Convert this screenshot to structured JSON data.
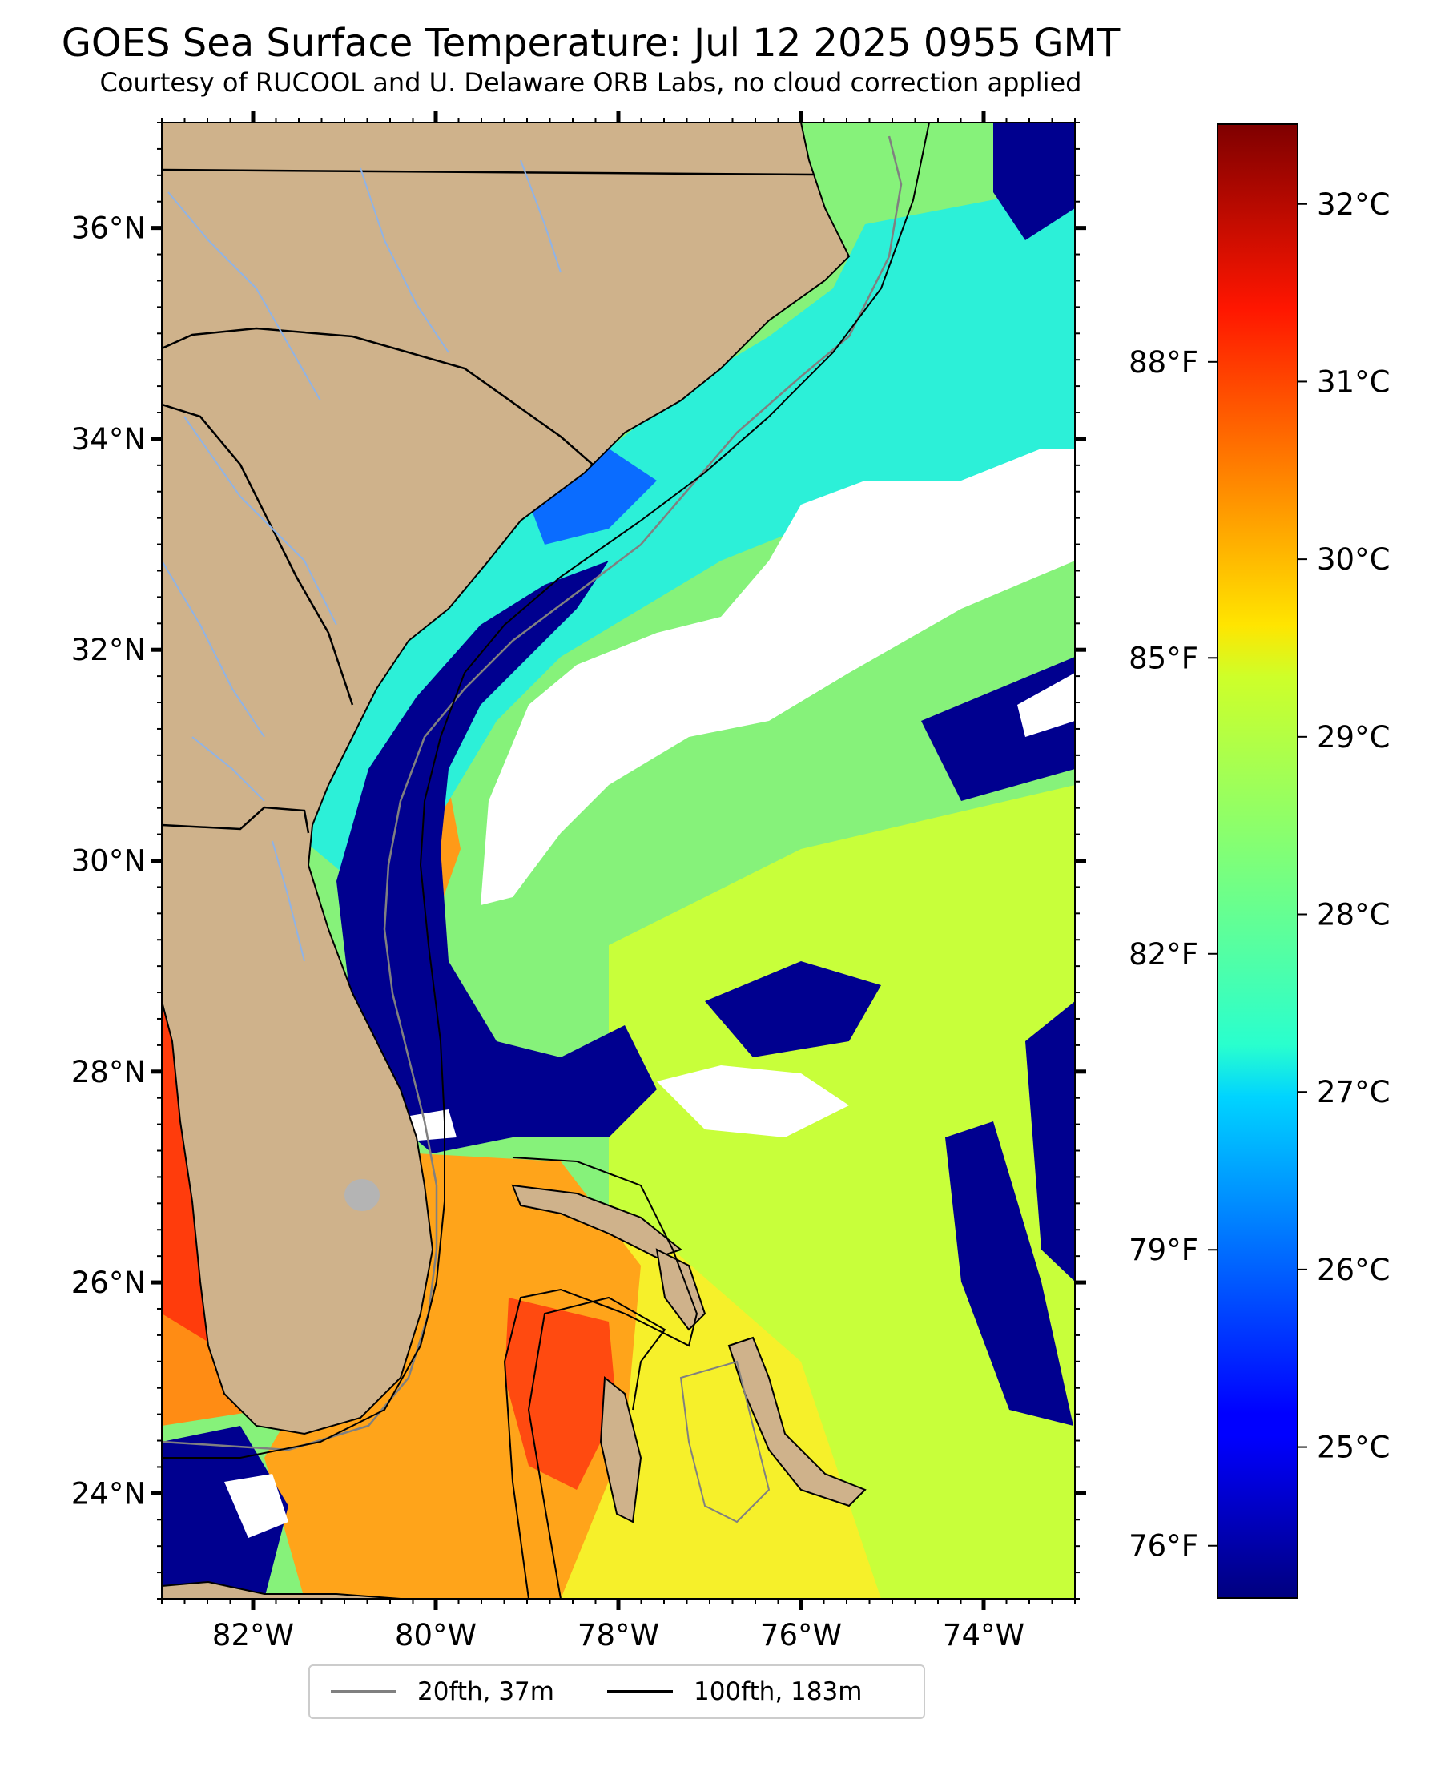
{
  "title": "GOES Sea Surface Temperature: Jul 12 2025 0955 GMT",
  "subtitle": "Courtesy of RUCOOL and U. Delaware ORB Labs, no cloud correction applied",
  "map": {
    "lon_range": [
      -83,
      -73
    ],
    "lat_range": [
      23,
      37
    ],
    "lon_ticks": [
      {
        "value": -82,
        "label": "82°W"
      },
      {
        "value": -80,
        "label": "80°W"
      },
      {
        "value": -78,
        "label": "78°W"
      },
      {
        "value": -76,
        "label": "76°W"
      },
      {
        "value": -74,
        "label": "74°W"
      }
    ],
    "lat_ticks": [
      {
        "value": 24,
        "label": "24°N"
      },
      {
        "value": 26,
        "label": "26°N"
      },
      {
        "value": 28,
        "label": "28°N"
      },
      {
        "value": 30,
        "label": "30°N"
      },
      {
        "value": 32,
        "label": "32°N"
      },
      {
        "value": 34,
        "label": "34°N"
      },
      {
        "value": 36,
        "label": "36°N"
      }
    ],
    "colors": {
      "land": "#cfb28b",
      "ocean_base": "#7ef27a",
      "cold": "#00008f",
      "cloud": "#ffffff"
    }
  },
  "colorbar": {
    "colormap": "jet",
    "range_c": [
      24.15,
      32.45
    ],
    "celsius_ticks": [
      {
        "value": 25,
        "label": "25°C"
      },
      {
        "value": 26,
        "label": "26°C"
      },
      {
        "value": 27,
        "label": "27°C"
      },
      {
        "value": 28,
        "label": "28°C"
      },
      {
        "value": 29,
        "label": "29°C"
      },
      {
        "value": 30,
        "label": "30°C"
      },
      {
        "value": 31,
        "label": "31°C"
      },
      {
        "value": 32,
        "label": "32°C"
      }
    ],
    "fahrenheit_ticks": [
      {
        "value": 76,
        "label": "76°F"
      },
      {
        "value": 79,
        "label": "79°F"
      },
      {
        "value": 82,
        "label": "82°F"
      },
      {
        "value": 85,
        "label": "85°F"
      },
      {
        "value": 88,
        "label": "88°F"
      }
    ]
  },
  "legend": {
    "items": [
      {
        "label": "20fth, 37m",
        "color": "#808080"
      },
      {
        "label": "100fth, 183m",
        "color": "#000000"
      }
    ]
  }
}
